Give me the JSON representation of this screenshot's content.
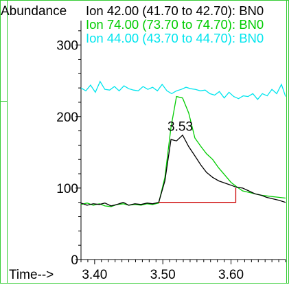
{
  "chart_data": {
    "type": "line",
    "ylabel": "Abundance",
    "xlabel": "Time-->",
    "xlim": [
      3.38,
      3.68
    ],
    "ylim": [
      0,
      340
    ],
    "x_ticks": [
      "3.40",
      "3.50",
      "3.60"
    ],
    "x_tick_values": [
      3.4,
      3.5,
      3.6
    ],
    "y_ticks": [
      "0",
      "100",
      "200",
      "300"
    ],
    "y_tick_values": [
      0,
      100,
      200,
      300
    ],
    "grid": false,
    "legend": [
      {
        "text": "Ion  42.00 (41.70 to 42.70): BN0",
        "color": "#000000"
      },
      {
        "text": "Ion  74.00 (73.70 to 74.70): BN0",
        "color": "#00cc00"
      },
      {
        "text": "Ion  44.00 (43.70 to 44.70): BN0",
        "color": "#00e5ee"
      }
    ],
    "annotations": [
      {
        "text": "3.53",
        "x": 3.527,
        "y": 182
      }
    ],
    "series": [
      {
        "name": "Ion  42.00 (41.70 to 42.70): BN0",
        "color": "#000000",
        "x": [
          3.38,
          3.389,
          3.398,
          3.407,
          3.415,
          3.424,
          3.433,
          3.442,
          3.45,
          3.459,
          3.468,
          3.477,
          3.485,
          3.494,
          3.503,
          3.512,
          3.52,
          3.529,
          3.538,
          3.547,
          3.556,
          3.564,
          3.573,
          3.582,
          3.591,
          3.6,
          3.608,
          3.617,
          3.626,
          3.635,
          3.644,
          3.652,
          3.661,
          3.67,
          3.68
        ],
        "values": [
          79,
          76,
          78,
          77,
          79,
          75,
          77,
          80,
          76,
          78,
          77,
          79,
          78,
          80,
          110,
          168,
          166,
          174,
          158,
          145,
          132,
          122,
          115,
          110,
          107,
          104,
          101,
          100,
          96,
          92,
          90,
          87,
          85,
          83,
          80
        ]
      },
      {
        "name": "Ion  74.00 (73.70 to 74.70): BN0",
        "color": "#00cc00",
        "x": [
          3.38,
          3.389,
          3.398,
          3.407,
          3.415,
          3.424,
          3.433,
          3.442,
          3.45,
          3.459,
          3.468,
          3.477,
          3.485,
          3.494,
          3.503,
          3.512,
          3.52,
          3.529,
          3.538,
          3.547,
          3.556,
          3.564,
          3.573,
          3.582,
          3.591,
          3.6,
          3.608,
          3.617,
          3.626,
          3.635,
          3.644,
          3.652,
          3.661,
          3.67,
          3.68
        ],
        "values": [
          77,
          79,
          76,
          78,
          75,
          74,
          77,
          78,
          76,
          77,
          76,
          78,
          77,
          79,
          115,
          185,
          228,
          226,
          205,
          170,
          158,
          148,
          140,
          128,
          118,
          108,
          102,
          96,
          94,
          92,
          90,
          89,
          88,
          87,
          86
        ]
      },
      {
        "name": "Ion  44.00 (43.70 to 44.70): BN0",
        "color": "#00e5ee",
        "x": [
          3.38,
          3.387,
          3.394,
          3.401,
          3.408,
          3.415,
          3.422,
          3.429,
          3.436,
          3.443,
          3.45,
          3.457,
          3.464,
          3.471,
          3.478,
          3.485,
          3.492,
          3.499,
          3.506,
          3.513,
          3.52,
          3.527,
          3.534,
          3.541,
          3.548,
          3.555,
          3.562,
          3.569,
          3.576,
          3.583,
          3.59,
          3.597,
          3.604,
          3.611,
          3.618,
          3.625,
          3.632,
          3.639,
          3.646,
          3.653,
          3.66,
          3.667,
          3.674,
          3.68
        ],
        "values": [
          240,
          236,
          244,
          234,
          249,
          238,
          237,
          242,
          236,
          243,
          239,
          237,
          236,
          242,
          238,
          241,
          236,
          245,
          236,
          232,
          236,
          238,
          241,
          239,
          238,
          236,
          237,
          232,
          230,
          235,
          226,
          234,
          228,
          225,
          229,
          228,
          232,
          224,
          232,
          229,
          238,
          232,
          245,
          228
        ]
      }
    ],
    "baseline": {
      "color": "#cc0000",
      "x1": 3.494,
      "x2": 3.607,
      "y": 80,
      "drop_to": 100
    }
  }
}
